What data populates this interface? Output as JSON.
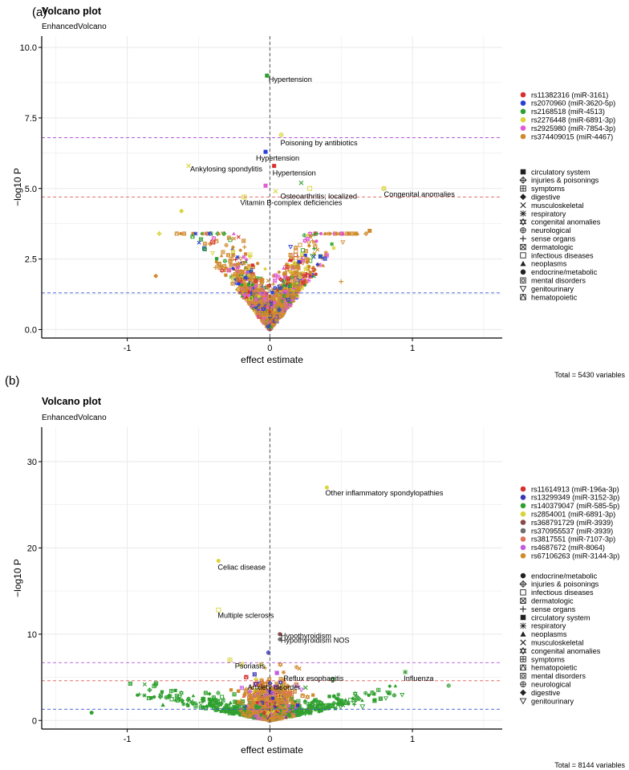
{
  "colors": {
    "grid": "#ebebeb",
    "axis": "#000000",
    "pink_cutoff": "#e15b5b",
    "purple_cutoff": "#b15bdc",
    "blue_cutoff": "#3b55d9"
  },
  "chart_data": [
    {
      "panel_label": "(a)",
      "type": "scatter",
      "title": "Volcano plot",
      "subtitle": "EnhancedVolcano",
      "xlabel": "effect estimate",
      "ylabel": "−log10 P",
      "xlim": [
        -1.6,
        1.63
      ],
      "ylim": [
        -0.3,
        10.4
      ],
      "xticks": [
        -1,
        0,
        1
      ],
      "yticks": [
        0.0,
        2.5,
        5.0,
        7.5,
        10.0
      ],
      "ytick_labels": [
        "0.0",
        "2.5",
        "5.0",
        "7.5",
        "10.0"
      ],
      "caption": "Total = 5430 variables",
      "cutoff_lines": [
        {
          "y": 6.8,
          "color": "purple"
        },
        {
          "y": 4.7,
          "color": "pink"
        },
        {
          "y": 1.3,
          "color": "blue"
        }
      ],
      "legend_series": [
        {
          "name": "rs11382316 (miR-3161)",
          "color": "#d62f2f"
        },
        {
          "name": "rs2070960 (miR-3620-5p)",
          "color": "#2b3fd6"
        },
        {
          "name": "rs2168518 (miR-4513)",
          "color": "#2fa02f"
        },
        {
          "name": "rs2276448 (miR-6891-3p)",
          "color": "#d9d43a"
        },
        {
          "name": "rs2925980 (miR-7854-3p)",
          "color": "#e15bd3"
        },
        {
          "name": "rs374409015 (miR-4467)",
          "color": "#d08a2e"
        }
      ],
      "legend_categories": [
        {
          "name": "circulatory system",
          "shape": "square"
        },
        {
          "name": "injuries & poisonings",
          "shape": "diamond-plus"
        },
        {
          "name": "symptoms",
          "shape": "square-plus"
        },
        {
          "name": "digestive",
          "shape": "diamond"
        },
        {
          "name": "musculoskeletal",
          "shape": "cross"
        },
        {
          "name": "respiratory",
          "shape": "asterisk"
        },
        {
          "name": "congenital anomalies",
          "shape": "star6"
        },
        {
          "name": "neurological",
          "shape": "circle-plus"
        },
        {
          "name": "sense organs",
          "shape": "plus"
        },
        {
          "name": "dermatologic",
          "shape": "square-x"
        },
        {
          "name": "infectious diseases",
          "shape": "square-open"
        },
        {
          "name": "neoplasms",
          "shape": "triangle"
        },
        {
          "name": "endocrine/metabolic",
          "shape": "circle"
        },
        {
          "name": "mental disorders",
          "shape": "circle-x"
        },
        {
          "name": "genitourinary",
          "shape": "triangle-down"
        },
        {
          "name": "hematopoietic",
          "shape": "square-tri"
        }
      ],
      "points": [
        {
          "x": -0.02,
          "y": 9.0,
          "series": 2,
          "shape": "square",
          "label": "Hypertension"
        },
        {
          "x": 0.08,
          "y": 6.9,
          "series": 3,
          "shape": "circle-plus",
          "label": "Poisoning by antibiotics"
        },
        {
          "x": -0.03,
          "y": 6.3,
          "series": 1,
          "shape": "square",
          "label": "Hypertension"
        },
        {
          "x": 0.03,
          "y": 5.8,
          "series": 0,
          "shape": "square",
          "label": "Hypertension"
        },
        {
          "x": -0.57,
          "y": 5.8,
          "series": 3,
          "shape": "cross",
          "label": "Ankylosing spondylitis"
        },
        {
          "x": 0.04,
          "y": 4.9,
          "series": 3,
          "shape": "cross",
          "label": "Osteoarthritis; localized"
        },
        {
          "x": 0.8,
          "y": 5.0,
          "series": 3,
          "shape": "star6",
          "label": "Congenital anomalies"
        },
        {
          "x": -0.18,
          "y": 4.7,
          "series": 3,
          "shape": "square-plus",
          "label": "Vitamin B-complex deficiencies"
        },
        {
          "x": 0.22,
          "y": 5.2,
          "series": 2,
          "shape": "cross",
          "label": ""
        },
        {
          "x": 0.28,
          "y": 5.0,
          "series": 3,
          "shape": "square-open",
          "label": ""
        },
        {
          "x": -0.03,
          "y": 5.1,
          "series": 4,
          "shape": "square",
          "label": ""
        },
        {
          "x": 0.7,
          "y": 3.5,
          "series": 5,
          "shape": "square",
          "label": ""
        },
        {
          "x": -0.62,
          "y": 4.2,
          "series": 3,
          "shape": "circle",
          "label": ""
        },
        {
          "x": -0.4,
          "y": 3.1,
          "series": 0,
          "shape": "square-x",
          "label": ""
        },
        {
          "x": -0.38,
          "y": 2.2,
          "series": 5,
          "shape": "plus",
          "label": ""
        },
        {
          "x": 0.3,
          "y": 2.6,
          "series": 2,
          "shape": "triangle-down",
          "label": ""
        },
        {
          "x": 0.5,
          "y": 1.7,
          "series": 5,
          "shape": "plus",
          "label": ""
        },
        {
          "x": -0.8,
          "y": 1.9,
          "series": 5,
          "shape": "diamond",
          "label": ""
        }
      ]
    },
    {
      "panel_label": "(b)",
      "type": "scatter",
      "title": "Volcano plot",
      "subtitle": "EnhancedVolcano",
      "xlabel": "effect estimate",
      "ylabel": "−log10 P",
      "xlim": [
        -1.6,
        1.63
      ],
      "ylim": [
        -1.0,
        34.0
      ],
      "xticks": [
        -1,
        0,
        1
      ],
      "yticks": [
        0,
        10,
        20,
        30
      ],
      "ytick_labels": [
        "0",
        "10",
        "20",
        "30"
      ],
      "caption": "Total = 8144 variables",
      "cutoff_lines": [
        {
          "y": 6.7,
          "color": "purple"
        },
        {
          "y": 4.6,
          "color": "pink"
        },
        {
          "y": 1.3,
          "color": "blue"
        }
      ],
      "legend_series": [
        {
          "name": "rs11614913 (miR-196a-3p)",
          "color": "#d62f2f"
        },
        {
          "name": "rs13299349 (miR-3152-3p)",
          "color": "#3a34b8"
        },
        {
          "name": "rs140379047 (miR-585-5p)",
          "color": "#2fa02f"
        },
        {
          "name": "rs2854001 (miR-6891-3p)",
          "color": "#d9d43a"
        },
        {
          "name": "rs368791729 (miR-3939)",
          "color": "#8b4a4a"
        },
        {
          "name": "rs370955537 (miR-3939)",
          "color": "#6f6f6f"
        },
        {
          "name": "rs3817551 (miR-7107-3p)",
          "color": "#e0725b"
        },
        {
          "name": "rs4687672 (miR-8064)",
          "color": "#c15be0"
        },
        {
          "name": "rs67106263 (miR-3144-3p)",
          "color": "#d08a2e"
        }
      ],
      "legend_categories": [
        {
          "name": "endocrine/metabolic",
          "shape": "circle"
        },
        {
          "name": "injuries & poisonings",
          "shape": "diamond-plus"
        },
        {
          "name": "infectious diseases",
          "shape": "square-open"
        },
        {
          "name": "dermatologic",
          "shape": "square-x"
        },
        {
          "name": "sense organs",
          "shape": "plus"
        },
        {
          "name": "circulatory system",
          "shape": "square"
        },
        {
          "name": "respiratory",
          "shape": "asterisk"
        },
        {
          "name": "neoplasms",
          "shape": "triangle"
        },
        {
          "name": "musculoskeletal",
          "shape": "cross"
        },
        {
          "name": "congenital anomalies",
          "shape": "star6"
        },
        {
          "name": "symptoms",
          "shape": "square-plus"
        },
        {
          "name": "hematopoietic",
          "shape": "square-tri"
        },
        {
          "name": "mental disorders",
          "shape": "circle-x"
        },
        {
          "name": "neurological",
          "shape": "circle-plus"
        },
        {
          "name": "digestive",
          "shape": "diamond"
        },
        {
          "name": "genitourinary",
          "shape": "triangle-down"
        }
      ],
      "points": [
        {
          "x": 0.4,
          "y": 27.0,
          "series": 3,
          "shape": "circle",
          "label": "Other inflammatory spondylopathies"
        },
        {
          "x": -0.36,
          "y": 18.5,
          "series": 3,
          "shape": "circle",
          "label": "Celiac disease"
        },
        {
          "x": -0.36,
          "y": 12.8,
          "series": 3,
          "shape": "square-open",
          "label": "Multiple sclerosis"
        },
        {
          "x": 0.07,
          "y": 10.0,
          "series": 4,
          "shape": "circle",
          "label": "Hypothyroidism"
        },
        {
          "x": 0.07,
          "y": 9.4,
          "series": 5,
          "shape": "circle",
          "label": "Hypothyroidism NOS"
        },
        {
          "x": -0.2,
          "y": 6.5,
          "series": 3,
          "shape": "square-x",
          "label": "Psoriasis"
        },
        {
          "x": 0.05,
          "y": 5.5,
          "series": 7,
          "shape": "square",
          "label": "Reflux esophagitis"
        },
        {
          "x": -0.1,
          "y": 4.2,
          "series": 0,
          "shape": "square-open",
          "label": "Anxiety disorder"
        },
        {
          "x": 0.95,
          "y": 5.6,
          "series": 2,
          "shape": "asterisk",
          "label": "Influenza"
        },
        {
          "x": -0.28,
          "y": 7.0,
          "series": 3,
          "shape": "square-plus",
          "label": ""
        },
        {
          "x": 0.45,
          "y": 2.8,
          "series": 2,
          "shape": "circle",
          "label": ""
        },
        {
          "x": 0.65,
          "y": 1.6,
          "series": 2,
          "shape": "triangle-down",
          "label": ""
        },
        {
          "x": -0.75,
          "y": 1.8,
          "series": 2,
          "shape": "triangle",
          "label": ""
        },
        {
          "x": -1.25,
          "y": 0.9,
          "series": 2,
          "shape": "circle",
          "label": ""
        },
        {
          "x": -0.55,
          "y": 2.2,
          "series": 2,
          "shape": "cross",
          "label": ""
        },
        {
          "x": 0.25,
          "y": 3.8,
          "series": 2,
          "shape": "cross",
          "label": ""
        }
      ]
    }
  ]
}
